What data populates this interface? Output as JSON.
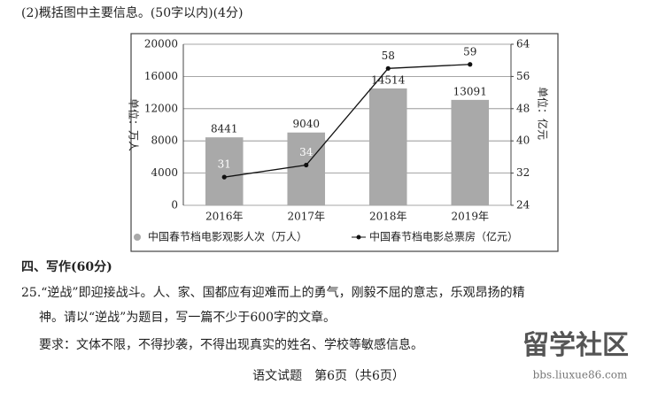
{
  "question": "(2)概括图中主要信息。(50字以内)(4分)",
  "chart_data": {
    "type": "bar",
    "categories": [
      "2016年",
      "2017年",
      "2018年",
      "2019年"
    ],
    "ylabel": "单位：万人",
    "y2label": "单位：亿元",
    "ylim": [
      0,
      20000
    ],
    "yticks": [
      0,
      4000,
      8000,
      12000,
      16000,
      20000
    ],
    "y2lim": [
      24,
      64
    ],
    "y2ticks": [
      24,
      32,
      40,
      48,
      56,
      64
    ],
    "grid": true,
    "series": [
      {
        "name": "中国春节档电影观影人次（万人）",
        "type": "bar",
        "color": "#a9a9a9",
        "values": [
          8441,
          9040,
          14514,
          13091
        ]
      },
      {
        "name": "中国春节档电影总票房（亿元）",
        "type": "line",
        "axis": "y2",
        "color": "#111111",
        "values": [
          31,
          34,
          58,
          59
        ]
      }
    ]
  },
  "section_title": "四、写作(60分)",
  "prompt_lines": [
    "25.“逆战”即迎接战斗。人、家、国都应有迎难而上的勇气，刚毅不屈的意志，乐观昂扬的精",
    "神。请以“逆战”为题目，写一篇不少于600字的文章。"
  ],
  "requirement": "要求：文体不限，不得抄袭，不得出现真实的姓名、学校等敏感信息。",
  "footer": "语文试题　第6页（共6页）",
  "watermark": {
    "title": "留学社区",
    "url": "bbs.liuxue86.com"
  }
}
